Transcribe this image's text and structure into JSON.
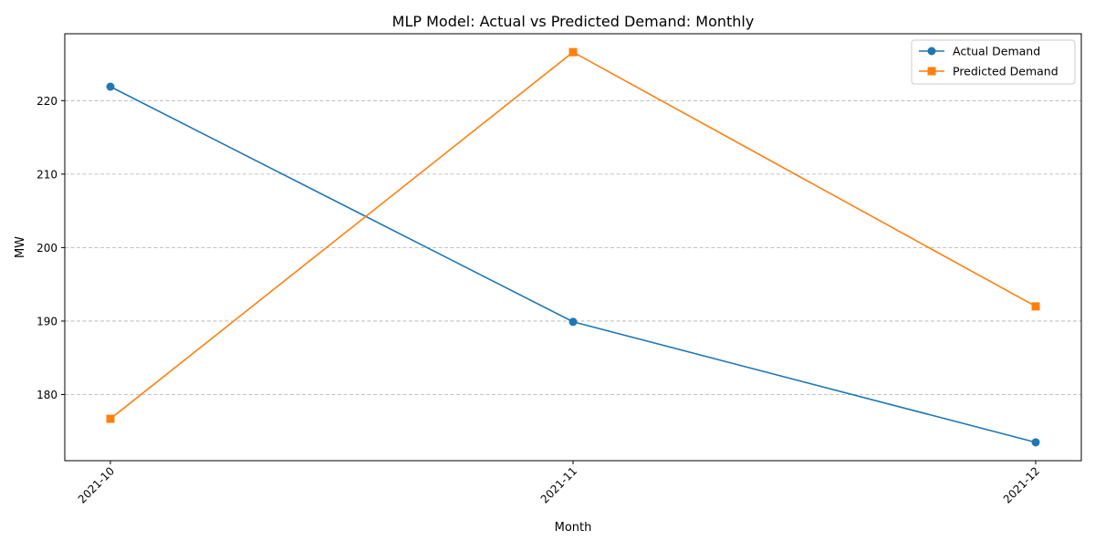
{
  "chart_data": {
    "type": "line",
    "title": "MLP Model: Actual vs Predicted Demand: Monthly",
    "xlabel": "Month",
    "ylabel": "MW",
    "categories": [
      "2021-10",
      "2021-11",
      "2021-12"
    ],
    "series": [
      {
        "name": "Actual Demand",
        "values": [
          221.9,
          189.9,
          173.5
        ],
        "color": "#1f77b4",
        "marker": "circle"
      },
      {
        "name": "Predicted Demand",
        "values": [
          176.7,
          226.6,
          192.0
        ],
        "color": "#ff7f0e",
        "marker": "square"
      }
    ],
    "ylim": [
      171.0,
      229.1
    ],
    "yticks": [
      180,
      190,
      200,
      210,
      220
    ],
    "grid": "y-dashed",
    "legend_position": "top-right",
    "xtick_rotation": 45
  }
}
